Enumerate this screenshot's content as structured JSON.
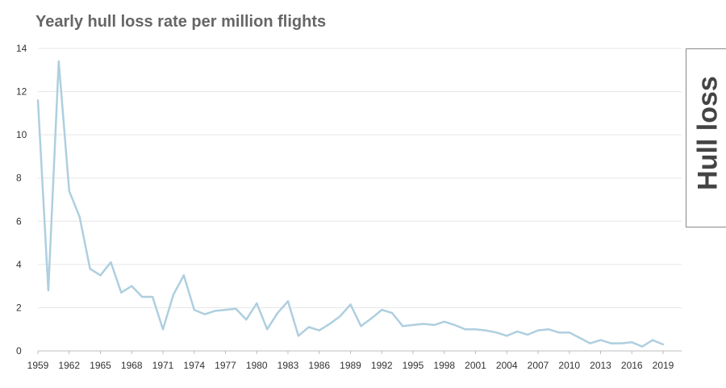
{
  "header": {
    "title": "Yearly hull loss rate per million flights"
  },
  "side_tab": {
    "label": "Hull loss"
  },
  "colors": {
    "line": "#aecfdf",
    "grid": "#e6e6e6",
    "axis": "#bdbdbd",
    "tick_text": "#333333",
    "title": "#666666"
  },
  "chart_data": {
    "type": "line",
    "title": "Yearly hull loss rate per million flights",
    "xlabel": "",
    "ylabel": "",
    "xlim": [
      1959,
      2019
    ],
    "ylim": [
      0,
      14
    ],
    "y_ticks": [
      0,
      2,
      4,
      6,
      8,
      10,
      12,
      14
    ],
    "x_ticks": [
      1959,
      1962,
      1965,
      1968,
      1971,
      1974,
      1977,
      1980,
      1983,
      1986,
      1989,
      1992,
      1995,
      1998,
      2001,
      2004,
      2007,
      2010,
      2013,
      2016,
      2019
    ],
    "grid": "horizontal",
    "series": [
      {
        "x": [
          1959,
          1960,
          1961,
          1962,
          1963,
          1964,
          1965,
          1966,
          1967,
          1968,
          1969,
          1970,
          1971,
          1972,
          1973,
          1974,
          1975,
          1976,
          1977,
          1978,
          1979,
          1980,
          1981,
          1982,
          1983,
          1984,
          1985,
          1986,
          1987,
          1988,
          1989,
          1990,
          1991,
          1992,
          1993,
          1994,
          1995,
          1996,
          1997,
          1998,
          1999,
          2000,
          2001,
          2002,
          2003,
          2004,
          2005,
          2006,
          2007,
          2008,
          2009,
          2010,
          2011,
          2012,
          2013,
          2014,
          2015,
          2016,
          2017,
          2018,
          2019
        ],
        "values": [
          11.6,
          2.8,
          13.4,
          7.4,
          6.2,
          3.8,
          3.5,
          4.1,
          2.7,
          3.0,
          2.5,
          2.5,
          1.0,
          2.6,
          3.5,
          1.9,
          1.7,
          1.85,
          1.9,
          1.95,
          1.45,
          2.2,
          1.0,
          1.75,
          2.3,
          0.7,
          1.1,
          0.95,
          1.25,
          1.6,
          2.15,
          1.15,
          1.5,
          1.9,
          1.75,
          1.15,
          1.2,
          1.25,
          1.2,
          1.35,
          1.2,
          1.0,
          1.0,
          0.95,
          0.85,
          0.7,
          0.9,
          0.75,
          0.95,
          1.0,
          0.85,
          0.85,
          0.6,
          0.35,
          0.5,
          0.35,
          0.35,
          0.4,
          0.2,
          0.5,
          0.3
        ]
      }
    ]
  }
}
